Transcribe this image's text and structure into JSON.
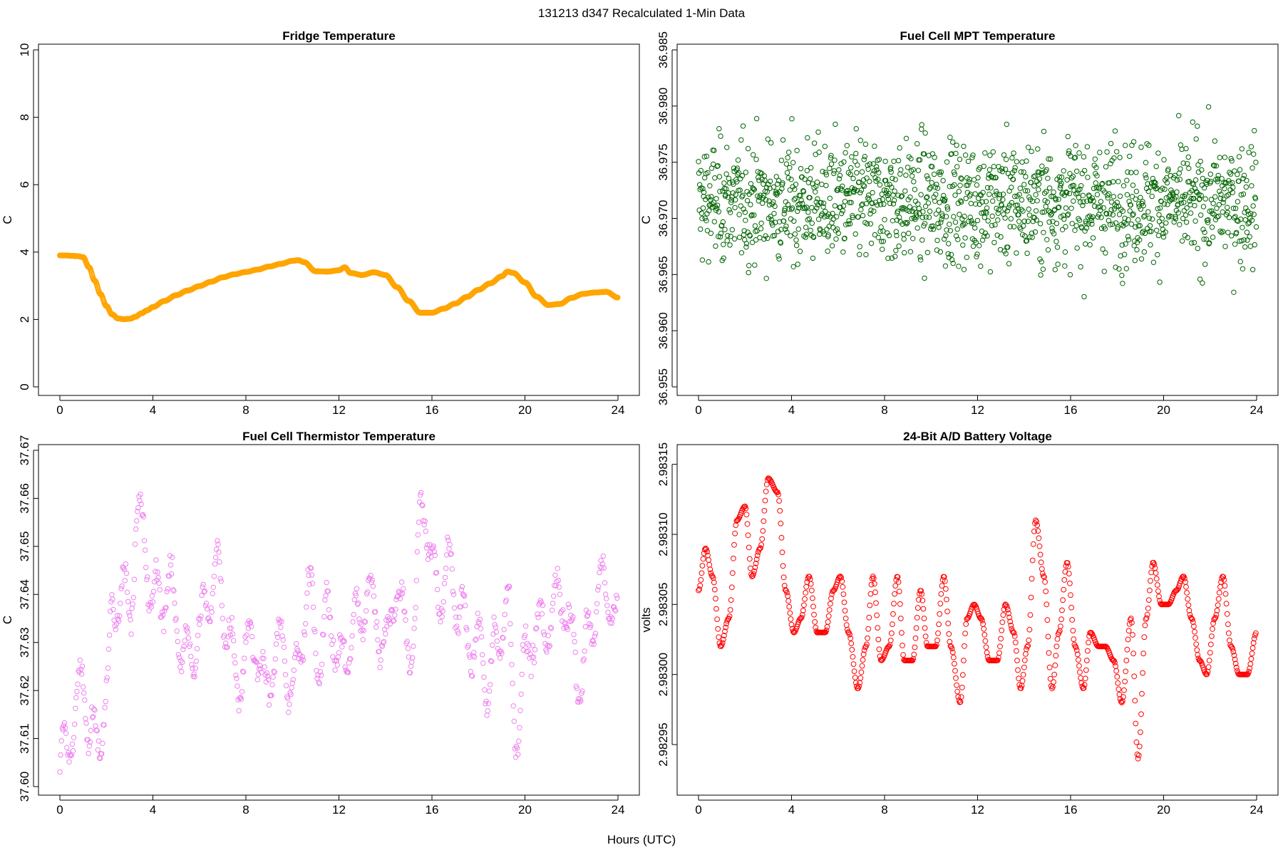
{
  "figure": {
    "title": "131213   d347   Recalculated 1-Min Data",
    "shared_xlabel": "Hours (UTC)"
  },
  "chart_data": [
    {
      "id": "fridge",
      "type": "scatter",
      "title": "Fridge Temperature",
      "xlabel": "",
      "ylabel": "C",
      "color": "#FFA500",
      "xlim": [
        0,
        24
      ],
      "ylim": [
        0,
        10
      ],
      "xticks": [
        "0",
        "4",
        "8",
        "12",
        "16",
        "20",
        "24"
      ],
      "yticks": [
        "0",
        "2",
        "4",
        "6",
        "8",
        "10"
      ],
      "x": [
        0.0,
        0.25,
        0.5,
        0.75,
        1.0,
        1.25,
        1.5,
        1.75,
        2.0,
        2.25,
        2.5,
        2.75,
        3.0,
        3.25,
        3.5,
        3.75,
        4.0,
        4.5,
        5.0,
        5.5,
        6.0,
        6.5,
        7.0,
        7.5,
        8.0,
        8.5,
        9.0,
        9.5,
        10.0,
        10.25,
        10.5,
        11.0,
        11.5,
        12.0,
        12.25,
        12.5,
        13.0,
        13.5,
        14.0,
        14.5,
        15.0,
        15.5,
        16.0,
        16.5,
        17.0,
        17.5,
        18.0,
        18.5,
        19.0,
        19.25,
        19.5,
        20.0,
        20.5,
        21.0,
        21.5,
        22.0,
        22.5,
        23.0,
        23.5,
        24.0
      ],
      "y": [
        3.9,
        3.9,
        3.89,
        3.88,
        3.85,
        3.55,
        3.15,
        2.75,
        2.4,
        2.15,
        2.03,
        2.01,
        2.02,
        2.08,
        2.18,
        2.27,
        2.37,
        2.55,
        2.72,
        2.86,
        2.99,
        3.12,
        3.25,
        3.34,
        3.41,
        3.48,
        3.57,
        3.65,
        3.74,
        3.76,
        3.7,
        3.43,
        3.42,
        3.46,
        3.55,
        3.38,
        3.32,
        3.4,
        3.32,
        2.96,
        2.55,
        2.2,
        2.2,
        2.32,
        2.47,
        2.67,
        2.88,
        3.07,
        3.28,
        3.42,
        3.38,
        3.1,
        2.68,
        2.43,
        2.46,
        2.64,
        2.76,
        2.8,
        2.82,
        2.65
      ]
    },
    {
      "id": "mpt",
      "type": "scatter",
      "title": "Fuel Cell MPT Temperature",
      "xlabel": "",
      "ylabel": "C",
      "color": "#006400",
      "xlim": [
        0,
        24
      ],
      "ylim": [
        36.955,
        36.985
      ],
      "xticks": [
        "0",
        "4",
        "8",
        "12",
        "16",
        "20",
        "24"
      ],
      "yticks": [
        "36.955",
        "36.960",
        "36.965",
        "36.970",
        "36.975",
        "36.980",
        "36.985"
      ],
      "mean": 36.9715,
      "spread": 0.0042,
      "n_points": 1440
    },
    {
      "id": "thermistor",
      "type": "scatter",
      "title": "Fuel Cell Thermistor Temperature",
      "xlabel": "",
      "ylabel": "C",
      "color": "#EE82EE",
      "xlim": [
        0,
        24
      ],
      "ylim": [
        37.6,
        37.67
      ],
      "xticks": [
        "0",
        "4",
        "8",
        "12",
        "16",
        "20",
        "24"
      ],
      "yticks": [
        "37.60",
        "37.61",
        "37.62",
        "37.63",
        "37.64",
        "37.65",
        "37.66",
        "37.67"
      ],
      "x": [
        0.0,
        0.3,
        0.6,
        1.0,
        1.3,
        1.6,
        2.0,
        2.3,
        2.6,
        3.0,
        3.3,
        3.6,
        4.0,
        4.3,
        4.6,
        5.0,
        5.3,
        5.6,
        6.0,
        6.4,
        6.8,
        7.2,
        7.6,
        8.0,
        8.4,
        8.8,
        9.2,
        9.6,
        10.0,
        10.4,
        10.8,
        11.2,
        11.6,
        12.0,
        12.4,
        12.8,
        13.2,
        13.6,
        14.0,
        14.4,
        14.8,
        15.2,
        15.6,
        16.0,
        16.4,
        16.8,
        17.2,
        17.6,
        18.0,
        18.4,
        18.8,
        19.2,
        19.6,
        20.0,
        20.4,
        20.8,
        21.2,
        21.6,
        22.0,
        22.4,
        22.8,
        23.2,
        23.6,
        24.0
      ],
      "y": [
        37.605,
        37.608,
        37.614,
        37.622,
        37.612,
        37.607,
        37.62,
        37.636,
        37.642,
        37.637,
        37.655,
        37.652,
        37.638,
        37.64,
        37.642,
        37.636,
        37.628,
        37.627,
        37.632,
        37.64,
        37.644,
        37.634,
        37.622,
        37.628,
        37.631,
        37.62,
        37.626,
        37.63,
        37.618,
        37.632,
        37.64,
        37.626,
        37.638,
        37.624,
        37.63,
        37.634,
        37.64,
        37.636,
        37.628,
        37.642,
        37.634,
        37.63,
        37.662,
        37.645,
        37.64,
        37.646,
        37.636,
        37.63,
        37.63,
        37.622,
        37.628,
        37.64,
        37.612,
        37.625,
        37.633,
        37.632,
        37.637,
        37.64,
        37.63,
        37.622,
        37.632,
        37.642,
        37.64,
        37.633
      ]
    },
    {
      "id": "battery",
      "type": "scatter",
      "title": "24-Bit A/D Battery Voltage",
      "xlabel": "",
      "ylabel": "volts",
      "color": "#FF0000",
      "xlim": [
        0,
        24
      ],
      "ylim": [
        2.98292,
        2.98316
      ],
      "xticks": [
        "0",
        "4",
        "8",
        "12",
        "16",
        "20",
        "24"
      ],
      "yticks": [
        "2.98295",
        "2.98300",
        "2.98305",
        "2.98310",
        "2.98315"
      ],
      "x": [
        0.0,
        0.3,
        0.6,
        0.95,
        1.3,
        1.65,
        2.0,
        2.3,
        2.65,
        3.0,
        3.4,
        3.75,
        4.1,
        4.4,
        4.75,
        5.1,
        5.45,
        5.8,
        6.1,
        6.45,
        6.85,
        7.2,
        7.5,
        7.85,
        8.2,
        8.55,
        8.85,
        9.2,
        9.55,
        9.85,
        10.2,
        10.55,
        10.85,
        11.25,
        11.55,
        11.85,
        12.15,
        12.5,
        12.85,
        13.2,
        13.55,
        13.85,
        14.15,
        14.5,
        14.85,
        15.2,
        15.5,
        15.85,
        16.2,
        16.55,
        16.85,
        17.2,
        17.5,
        17.85,
        18.2,
        18.6,
        18.9,
        19.25,
        19.55,
        19.9,
        20.2,
        20.55,
        20.85,
        21.2,
        21.55,
        21.85,
        22.2,
        22.55,
        22.9,
        23.25,
        23.6,
        24.0
      ],
      "y": [
        2.98306,
        2.98309,
        2.98307,
        2.98302,
        2.98304,
        2.98311,
        2.98312,
        2.98307,
        2.98309,
        2.98314,
        2.98313,
        2.98306,
        2.98303,
        2.98304,
        2.98307,
        2.98303,
        2.98303,
        2.98306,
        2.98307,
        2.98303,
        2.98299,
        2.98302,
        2.98307,
        2.98301,
        2.98302,
        2.98307,
        2.98301,
        2.98301,
        2.98306,
        2.98302,
        2.98302,
        2.98307,
        2.98302,
        2.98298,
        2.98304,
        2.98305,
        2.98304,
        2.98301,
        2.98301,
        2.98305,
        2.98303,
        2.98299,
        2.98302,
        2.98311,
        2.98307,
        2.98299,
        2.98303,
        2.98308,
        2.98302,
        2.98299,
        2.98303,
        2.98302,
        2.98302,
        2.98301,
        2.98298,
        2.98304,
        2.98294,
        2.98304,
        2.98308,
        2.98305,
        2.98305,
        2.98306,
        2.98307,
        2.98304,
        2.98301,
        2.983,
        2.98304,
        2.98307,
        2.98302,
        2.983,
        2.983,
        2.98303
      ]
    }
  ]
}
